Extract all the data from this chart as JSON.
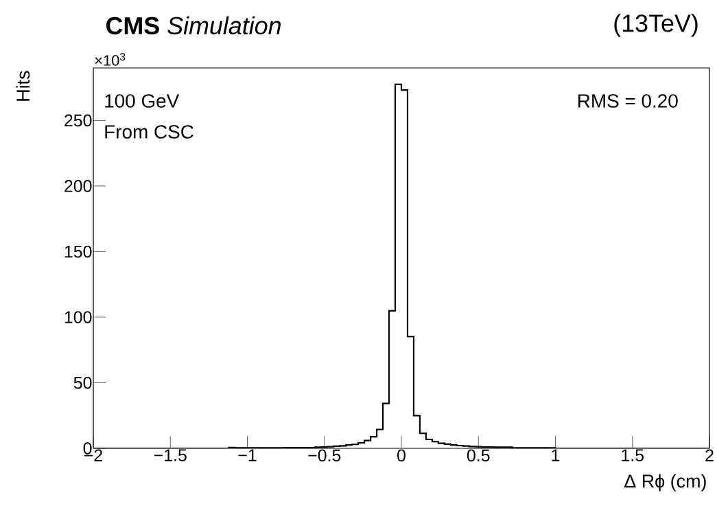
{
  "chart_data": {
    "type": "histogram",
    "title": "**CMS** *Simulation*",
    "xlabel": "Δ Rϕ (cm)",
    "ylabel": "Hits",
    "annotations": [
      "×10$^{3}$",
      "(13TeV)",
      "100 GeV",
      "From CSC",
      "RMS = 0.20"
    ],
    "bins": [
      -2,
      -1.96,
      -1.92,
      -1.88,
      -1.84,
      -1.8,
      -1.76,
      -1.72,
      -1.68,
      -1.64,
      -1.6,
      -1.56,
      -1.52,
      -1.48,
      -1.44,
      -1.4,
      -1.36,
      -1.32,
      -1.28,
      -1.24,
      -1.2,
      -1.16,
      -1.12,
      -1.08,
      -1.04,
      -1,
      -0.96,
      -0.92,
      -0.88,
      -0.84,
      -0.8,
      -0.76,
      -0.72,
      -0.68,
      -0.64,
      -0.6,
      -0.56,
      -0.52,
      -0.48,
      -0.44,
      -0.4,
      -0.36,
      -0.32,
      -0.28,
      -0.24,
      -0.2,
      -0.16,
      -0.12,
      -0.08,
      -0.04,
      0,
      0.04,
      0.08,
      0.12,
      0.16,
      0.2,
      0.24,
      0.28,
      0.32,
      0.36,
      0.4,
      0.44,
      0.48,
      0.52,
      0.56,
      0.6,
      0.64,
      0.68,
      0.72,
      0.76,
      0.8,
      0.84,
      0.88,
      0.92,
      0.96,
      1,
      1.04,
      1.08,
      1.12,
      1.16,
      1.2,
      1.24,
      1.28,
      1.32,
      1.36,
      1.4,
      1.44,
      1.48,
      1.52,
      1.56,
      1.6,
      1.64,
      1.68,
      1.72,
      1.76,
      1.8,
      1.84,
      1.88,
      1.92,
      1.96,
      2
    ],
    "values": [
      0,
      0,
      0,
      0,
      0,
      0,
      0,
      0,
      0,
      0,
      0,
      0,
      0,
      0,
      0,
      0,
      0,
      0,
      0,
      0,
      0,
      0,
      0.6,
      0.3,
      0.3,
      0.3,
      0.3,
      0.3,
      0.3,
      0.3,
      0.3,
      0.5,
      0.5,
      0.5,
      0.5,
      0.5,
      0.8,
      1.0,
      1.2,
      1.6,
      1.9,
      2.5,
      3.0,
      4.2,
      6.0,
      8.8,
      14.4,
      34.2,
      104.9,
      277.5,
      273.2,
      85.3,
      24.9,
      11.4,
      6.8,
      5.1,
      3.9,
      3.2,
      2.6,
      2.1,
      1.8,
      1.4,
      1.2,
      1.0,
      1.0,
      0.8,
      0.8,
      0.8,
      0.4,
      0.4,
      0.4,
      0.4,
      0.4,
      0.4,
      0.4,
      0,
      0,
      0,
      0,
      0,
      0,
      0,
      0,
      0,
      0,
      0,
      0,
      0,
      0,
      0,
      0,
      0,
      0,
      0,
      0,
      0,
      0,
      0,
      0,
      0
    ],
    "color": "#000000",
    "xlim": [
      -2,
      2
    ],
    "ylim": [
      0,
      290
    ],
    "xticks": [
      {
        "value": -2,
        "label": "−2"
      },
      {
        "value": -1.5,
        "label": "−1.5"
      },
      {
        "value": -1,
        "label": "−1"
      },
      {
        "value": -0.5,
        "label": "−0.5"
      },
      0,
      0.5,
      1,
      1.5,
      2
    ],
    "yticks": [
      0,
      50,
      100,
      150,
      200,
      250
    ]
  }
}
